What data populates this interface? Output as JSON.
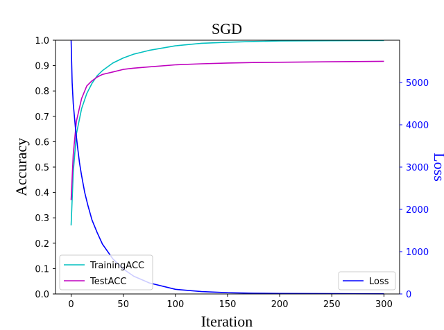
{
  "chart_data": {
    "type": "line",
    "title": "SGD",
    "xlabel": "Iteration",
    "ylabel_left": "Accuracy",
    "ylabel_right": "Loss",
    "xlim": [
      -15,
      315
    ],
    "ylim_left": [
      0.0,
      1.0
    ],
    "ylim_right": [
      0,
      6000
    ],
    "x_ticks": [
      "0",
      "50",
      "100",
      "150",
      "200",
      "250",
      "300"
    ],
    "y_left_ticks": [
      "0.0",
      "0.1",
      "0.2",
      "0.3",
      "0.4",
      "0.5",
      "0.6",
      "0.7",
      "0.8",
      "0.9",
      "1.0"
    ],
    "y_right_ticks": [
      "0",
      "1000",
      "2000",
      "3000",
      "4000",
      "5000"
    ],
    "grid": false,
    "legend_left": {
      "placement": "lower-left",
      "entries": [
        "TrainingACC",
        "TestACC"
      ]
    },
    "legend_right": {
      "placement": "lower-right",
      "entries": [
        "Loss"
      ]
    },
    "colors": {
      "training": "#00bfbf",
      "test": "#bf00bf",
      "loss": "#0000ff",
      "right_axis": "#0000ff"
    },
    "series": [
      {
        "name": "TrainingACC",
        "axis": "left",
        "x": [
          0,
          2,
          5,
          10,
          15,
          20,
          25,
          30,
          40,
          50,
          60,
          75,
          100,
          125,
          150,
          175,
          200,
          250,
          300
        ],
        "values": [
          0.27,
          0.48,
          0.63,
          0.73,
          0.79,
          0.83,
          0.86,
          0.88,
          0.91,
          0.93,
          0.945,
          0.96,
          0.978,
          0.988,
          0.992,
          0.995,
          0.997,
          0.998,
          0.999
        ]
      },
      {
        "name": "TestACC",
        "axis": "left",
        "x": [
          0,
          2,
          5,
          10,
          15,
          20,
          25,
          30,
          40,
          50,
          60,
          75,
          100,
          125,
          150,
          175,
          200,
          250,
          300
        ],
        "values": [
          0.37,
          0.55,
          0.68,
          0.77,
          0.82,
          0.84,
          0.855,
          0.865,
          0.875,
          0.885,
          0.89,
          0.895,
          0.903,
          0.907,
          0.91,
          0.912,
          0.913,
          0.915,
          0.917
        ]
      },
      {
        "name": "Loss",
        "axis": "right",
        "x": [
          0,
          1,
          2,
          4,
          6,
          8,
          10,
          13,
          16,
          20,
          25,
          30,
          40,
          50,
          60,
          75,
          100,
          125,
          150,
          175,
          200,
          250,
          300
        ],
        "values": [
          6000,
          5000,
          4500,
          3950,
          3500,
          3100,
          2800,
          2400,
          2100,
          1750,
          1450,
          1180,
          830,
          590,
          420,
          260,
          110,
          55,
          30,
          18,
          12,
          6,
          3
        ]
      }
    ]
  }
}
